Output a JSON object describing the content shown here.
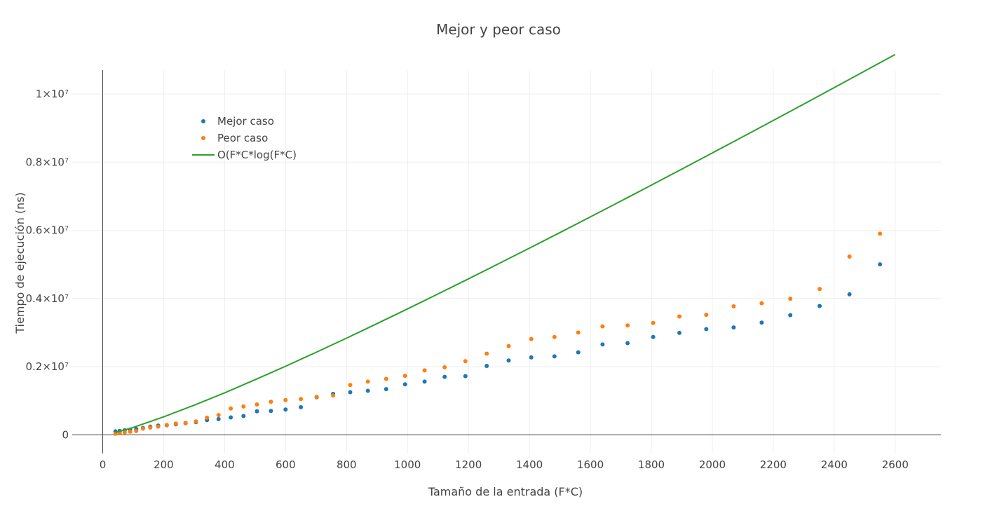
{
  "chart_data": {
    "type": "scatter",
    "title": "Mejor y peor caso",
    "xlabel": "Tamaño de la entrada (F*C)",
    "ylabel": "Tiempo  de ejecución (ns)",
    "xlim": [
      -100,
      2750
    ],
    "ylim": [
      -550000,
      10700000
    ],
    "x_ticks": [
      0,
      200,
      400,
      600,
      800,
      1000,
      1200,
      1400,
      1600,
      1800,
      2000,
      2200,
      2400,
      2600
    ],
    "x_tick_labels": [
      "0",
      "200",
      "400",
      "600",
      "800",
      "1000",
      "1200",
      "1400",
      "1600",
      "1800",
      "2000",
      "2200",
      "2400",
      "2600"
    ],
    "y_ticks": [
      0,
      2000000,
      4000000,
      6000000,
      8000000,
      10000000
    ],
    "y_tick_labels": [
      "0",
      "0.2×10⁷",
      "0.4×10⁷",
      "0.6×10⁷",
      "0.8×10⁷",
      "1×10⁷"
    ],
    "grid": true,
    "legend_position": "top-left",
    "series": [
      {
        "name": "Mejor caso",
        "kind": "markers",
        "color": "#1f77b4",
        "x": [
          42,
          56,
          72,
          90,
          110,
          132,
          156,
          182,
          210,
          240,
          272,
          306,
          342,
          380,
          420,
          462,
          506,
          552,
          600,
          650,
          702,
          756,
          812,
          870,
          930,
          992,
          1056,
          1122,
          1190,
          1260,
          1332,
          1406,
          1482,
          1560,
          1640,
          1722,
          1806,
          1892,
          1980,
          2070,
          2162,
          2256,
          2352,
          2450,
          2550
        ],
        "y": [
          100000,
          115000,
          130000,
          150000,
          170000,
          200000,
          240000,
          270000,
          280000,
          310000,
          340000,
          370000,
          430000,
          460000,
          510000,
          550000,
          690000,
          700000,
          740000,
          810000,
          1100000,
          1200000,
          1250000,
          1290000,
          1340000,
          1480000,
          1560000,
          1700000,
          1720000,
          2020000,
          2180000,
          2270000,
          2300000,
          2420000,
          2650000,
          2690000,
          2870000,
          2990000,
          3100000,
          3150000,
          3290000,
          3510000,
          3780000,
          4120000,
          5000000
        ]
      },
      {
        "name": "Peor caso",
        "kind": "markers",
        "color": "#ff7f0e",
        "x": [
          42,
          56,
          72,
          90,
          110,
          132,
          156,
          182,
          210,
          240,
          272,
          306,
          342,
          380,
          420,
          462,
          506,
          552,
          600,
          650,
          702,
          756,
          812,
          870,
          930,
          992,
          1056,
          1122,
          1190,
          1260,
          1332,
          1406,
          1482,
          1560,
          1640,
          1722,
          1806,
          1892,
          1980,
          2070,
          2162,
          2256,
          2352,
          2450,
          2550
        ],
        "y": [
          30000,
          50000,
          70000,
          90000,
          110000,
          180000,
          210000,
          240000,
          290000,
          330000,
          350000,
          390000,
          500000,
          580000,
          770000,
          830000,
          890000,
          970000,
          1020000,
          1050000,
          1110000,
          1150000,
          1460000,
          1560000,
          1640000,
          1730000,
          1890000,
          1980000,
          2160000,
          2380000,
          2600000,
          2810000,
          2870000,
          3000000,
          3180000,
          3210000,
          3280000,
          3470000,
          3520000,
          3770000,
          3860000,
          3990000,
          4280000,
          5230000,
          5900000
        ]
      },
      {
        "name": "O(F*C*log(F*C)",
        "kind": "line",
        "color": "#2ca02c",
        "x": [
          42,
          100,
          200,
          300,
          400,
          500,
          600,
          700,
          800,
          900,
          1000,
          1100,
          1200,
          1300,
          1400,
          1500,
          1600,
          1700,
          1800,
          1900,
          2000,
          2100,
          2200,
          2300,
          2400,
          2500,
          2600
        ],
        "y": [
          66000,
          216000,
          526000,
          867000,
          1232000,
          1615000,
          2011000,
          2419000,
          2836000,
          3261000,
          3693000,
          4131000,
          4575000,
          5023000,
          5476000,
          5933000,
          6393000,
          6857000,
          7324000,
          7795000,
          8268000,
          8744000,
          9222000,
          9703000,
          10186000,
          10672000,
          11159000
        ]
      }
    ]
  }
}
